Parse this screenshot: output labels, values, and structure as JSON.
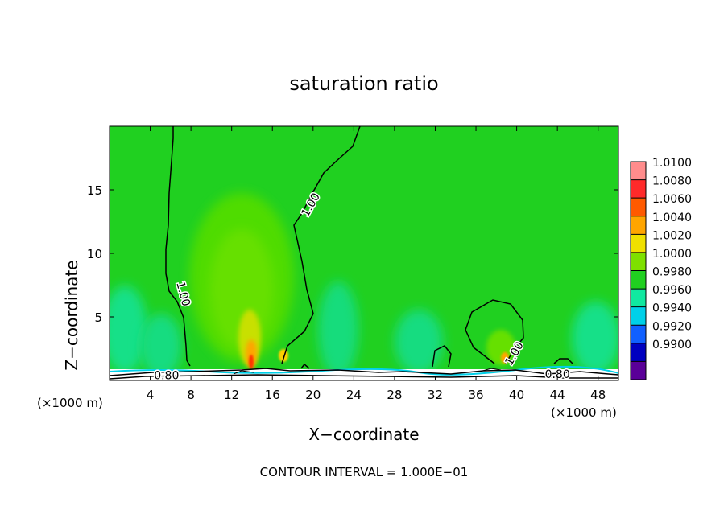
{
  "chart_data": {
    "type": "heatmap",
    "title": "saturation ratio",
    "xlabel": "X−coordinate",
    "ylabel": "Z−coordinate",
    "x_unit_left": "(×1000 m)",
    "x_unit_right": "(×1000 m)",
    "xlim": [
      0,
      50
    ],
    "ylim": [
      0,
      20
    ],
    "x_ticks": [
      4,
      8,
      12,
      16,
      20,
      24,
      28,
      32,
      36,
      40,
      44,
      48
    ],
    "y_ticks": [
      5,
      10,
      15
    ],
    "footer": "CONTOUR INTERVAL = 1.000E−01",
    "colorbar": {
      "levels": [
        "1.0100",
        "1.0080",
        "1.0060",
        "1.0040",
        "1.0020",
        "1.0000",
        "0.9980",
        "0.9960",
        "0.9940",
        "0.9920",
        "0.9900"
      ],
      "colors": [
        "#ff8c8c",
        "#ff2a2a",
        "#ff5a00",
        "#ffa500",
        "#f0e000",
        "#7ee000",
        "#20d020",
        "#10e8a0",
        "#00d0e8",
        "#1060ff",
        "#0000c0",
        "#5a0098"
      ]
    },
    "contour_labels": [
      {
        "text": "1.00",
        "x": 19.8,
        "y": 13.8,
        "angle": -60
      },
      {
        "text": "1.00",
        "x": 7.2,
        "y": 6.8,
        "angle": 75
      },
      {
        "text": "1.00",
        "x": 39.8,
        "y": 2.1,
        "angle": -60
      },
      {
        "text": "0.80",
        "x": 5.6,
        "y": 0.35,
        "angle": 0
      },
      {
        "text": "0.80",
        "x": 44.0,
        "y": 0.45,
        "angle": 0
      }
    ],
    "background_color": "#20d020"
  }
}
